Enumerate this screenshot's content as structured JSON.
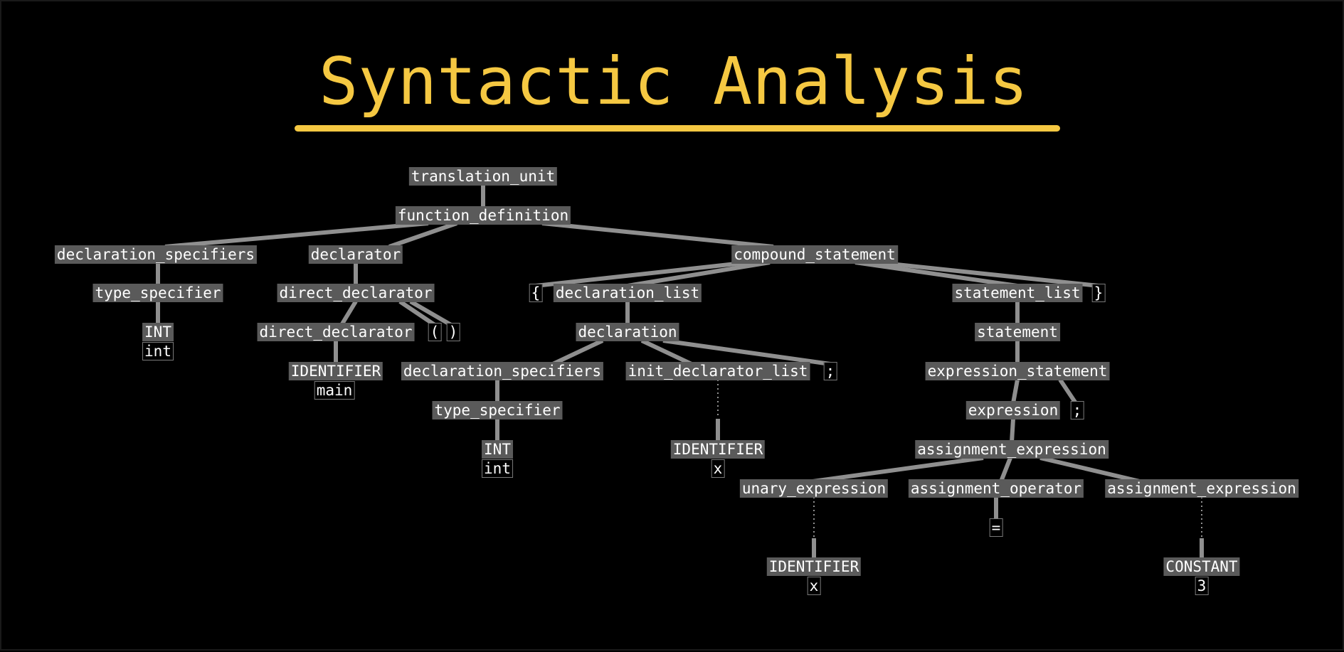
{
  "title": "Syntactic Analysis",
  "colors": {
    "background": "#000000",
    "title": "#f5c842",
    "node_fill": "#5a5a5a",
    "edge": "#8f8f8f"
  },
  "tree": {
    "translation_unit": "translation_unit",
    "function_definition": "function_definition",
    "declaration_specifiers_1": "declaration_specifiers",
    "type_specifier_1": "type_specifier",
    "int_token_1": "INT",
    "int_lexeme_1": "int",
    "declarator": "declarator",
    "direct_declarator_outer": "direct_declarator",
    "direct_declarator_inner": "direct_declarator",
    "lparen": "(",
    "rparen": ")",
    "identifier_main": "IDENTIFIER",
    "lexeme_main": "main",
    "compound_statement": "compound_statement",
    "lbrace": "{",
    "declaration_list": "declaration_list",
    "declaration": "declaration",
    "declaration_specifiers_2": "declaration_specifiers",
    "type_specifier_2": "type_specifier",
    "int_token_2": "INT",
    "int_lexeme_2": "int",
    "init_declarator_list": "init_declarator_list",
    "semicolon_1": ";",
    "identifier_x_1": "IDENTIFIER",
    "lexeme_x_1": "x",
    "statement_list": "statement_list",
    "rbrace": "}",
    "statement": "statement",
    "expression_statement": "expression_statement",
    "expression": "expression",
    "semicolon_2": ";",
    "assignment_expression_1": "assignment_expression",
    "unary_expression": "unary_expression",
    "assignment_operator": "assignment_operator",
    "assignment_expression_2": "assignment_expression",
    "identifier_x_2": "IDENTIFIER",
    "lexeme_x_2": "x",
    "equals_sign": "=",
    "constant_token": "CONSTANT",
    "constant_value": "3"
  }
}
